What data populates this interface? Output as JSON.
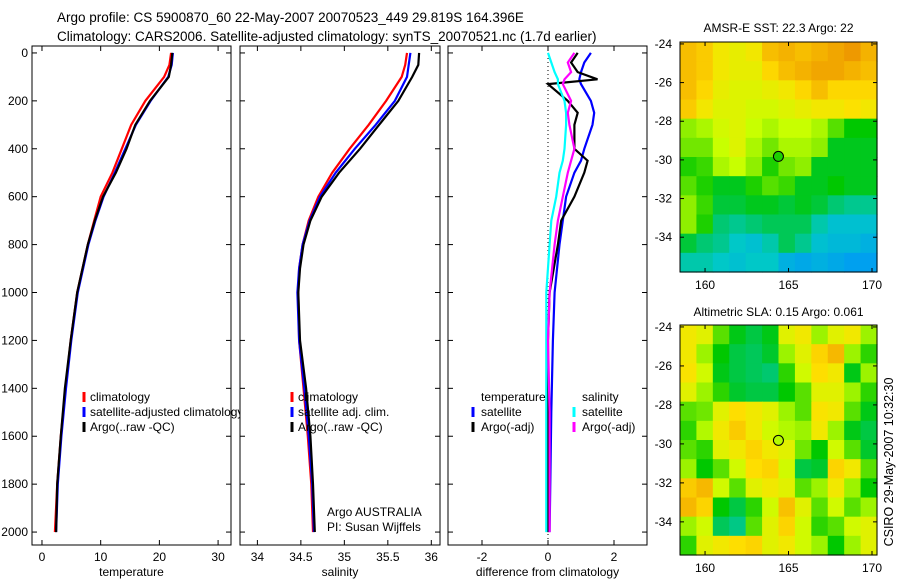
{
  "title": {
    "line1": "Argo profile: CS 5900870_60 22-May-2007 20070523_449 29.819S 164.396E",
    "line2": "Climatology: CARS2006. Satellite-adjusted climatology: synTS_20070521.nc (1.7d earlier)"
  },
  "footer_stamp": "CSIRO 29-May-2007 10:32:30",
  "colors": {
    "climatology": "#ff0000",
    "satellite": "#0000ff",
    "argo": "#000000",
    "sal_satellite": "#00ffff",
    "sal_argo": "#ff00ff"
  },
  "chart_data": [
    {
      "type": "line",
      "name": "temperature-profile",
      "xlabel": "temperature",
      "ylabel": "",
      "xlim": [
        -1.7,
        32.2
      ],
      "ylim": [
        2054,
        -29
      ],
      "xticks": [
        0,
        10,
        20,
        30
      ],
      "yticks": [
        0,
        200,
        400,
        600,
        800,
        1000,
        1200,
        1400,
        1600,
        1800,
        2000
      ],
      "depth": [
        0,
        50,
        100,
        200,
        300,
        400,
        500,
        600,
        700,
        800,
        1000,
        1200,
        1400,
        1600,
        1800,
        2000
      ],
      "series": [
        {
          "name": "climatology",
          "color": "#ff0000",
          "values": [
            22.0,
            21.7,
            20.8,
            17.6,
            15.2,
            13.6,
            12.0,
            10.0,
            8.9,
            7.8,
            6.0,
            4.9,
            4.0,
            3.2,
            2.6,
            2.2
          ]
        },
        {
          "name": "satellite-adjusted climatology",
          "color": "#0000ff",
          "values": [
            22.3,
            22.1,
            21.5,
            18.5,
            16.0,
            14.2,
            12.4,
            10.5,
            9.1,
            7.9,
            6.1,
            5.0,
            4.1,
            3.3,
            2.7,
            2.4
          ]
        },
        {
          "name": "Argo(..raw -QC)",
          "color": "#000000",
          "values": [
            22.2,
            22.0,
            21.6,
            18.4,
            15.9,
            14.4,
            12.6,
            10.4,
            9.0,
            7.8,
            6.0,
            4.9,
            3.9,
            3.2,
            2.6,
            2.4
          ]
        }
      ],
      "legend": [
        "climatology",
        "satellite-adjusted climatology",
        "Argo(..raw -QC)"
      ]
    },
    {
      "type": "line",
      "name": "salinity-profile",
      "xlabel": "salinity",
      "xlim": [
        33.8,
        36.1
      ],
      "ylim": [
        2054,
        -29
      ],
      "xticks": [
        34,
        34.5,
        35,
        35.5,
        36
      ],
      "depth": [
        0,
        50,
        100,
        200,
        300,
        400,
        500,
        600,
        700,
        800,
        900,
        1000,
        1200,
        1400,
        1600,
        1800,
        2000
      ],
      "series": [
        {
          "name": "climatology",
          "color": "#ff0000",
          "values": [
            35.72,
            35.7,
            35.66,
            35.48,
            35.28,
            35.06,
            34.86,
            34.7,
            34.59,
            34.52,
            34.48,
            34.47,
            34.48,
            34.53,
            34.58,
            34.62,
            34.64
          ]
        },
        {
          "name": "satellite adj. clim.",
          "color": "#0000ff",
          "values": [
            35.76,
            35.74,
            35.72,
            35.58,
            35.36,
            35.12,
            34.9,
            34.72,
            34.6,
            34.52,
            34.48,
            34.46,
            34.48,
            34.54,
            34.59,
            34.63,
            34.65
          ]
        },
        {
          "name": "Argo(..raw -QC)",
          "color": "#000000",
          "values": [
            35.86,
            35.85,
            35.78,
            35.62,
            35.4,
            35.18,
            34.94,
            34.74,
            34.61,
            34.53,
            34.49,
            34.47,
            34.49,
            34.56,
            34.61,
            34.64,
            34.66
          ]
        }
      ],
      "legend": [
        "climatology",
        "satellite adj. clim.",
        "Argo(..raw -QC)"
      ],
      "annotation": [
        "Argo AUSTRALIA",
        "PI: Susan Wijffels"
      ]
    },
    {
      "type": "line",
      "name": "difference-profile",
      "xlabel": "difference from climatology",
      "xlim": [
        -3.03,
        3.0
      ],
      "ylim": [
        2054,
        -29
      ],
      "xticks": [
        -2,
        0,
        2
      ],
      "zero_line": "dotted",
      "depth": [
        0,
        40,
        80,
        110,
        130,
        200,
        250,
        300,
        400,
        450,
        500,
        600,
        700,
        800,
        1000,
        1200,
        1500,
        2000
      ],
      "series": [
        {
          "name": "temperature satellite",
          "color": "#0000ff",
          "values": [
            1.3,
            1.1,
            1.0,
            0.95,
            1.0,
            1.3,
            1.4,
            1.35,
            1.1,
            1.0,
            0.8,
            0.55,
            0.45,
            0.35,
            0.2,
            0.15,
            0.1,
            0.05
          ]
        },
        {
          "name": "temperature Argo(-adj)",
          "color": "#000000",
          "values": [
            0.9,
            0.7,
            0.9,
            1.5,
            0.0,
            0.6,
            0.9,
            0.8,
            0.8,
            1.2,
            1.1,
            0.8,
            0.4,
            0.3,
            0.05,
            0.0,
            0.0,
            0.0
          ]
        },
        {
          "name": "salinity satellite",
          "color": "#00ffff",
          "values": [
            0.0,
            0.1,
            0.2,
            0.3,
            0.3,
            0.5,
            0.55,
            0.55,
            0.5,
            0.45,
            0.35,
            0.25,
            0.1,
            0.05,
            -0.05,
            -0.05,
            -0.05,
            -0.05
          ]
        },
        {
          "name": "salinity Argo(-adj)",
          "color": "#ff00ff",
          "values": [
            0.8,
            0.6,
            0.7,
            0.5,
            0.45,
            0.7,
            0.6,
            0.65,
            0.8,
            0.7,
            0.6,
            0.45,
            0.3,
            0.2,
            0.05,
            0.0,
            0.05,
            0.05
          ]
        }
      ],
      "legend": {
        "temperature": {
          "heading": "temperature",
          "items": [
            "satellite",
            "Argo(-adj)"
          ]
        },
        "salinity": {
          "heading": "salinity",
          "items": [
            "satellite",
            "Argo(-adj)"
          ]
        }
      }
    },
    {
      "type": "heatmap",
      "name": "sst-map",
      "title": "AMSR-E SST: 22.3 Argo: 22",
      "xlim": [
        158.5,
        170.3
      ],
      "ylim": [
        -35.8,
        -23.9
      ],
      "xticks": [
        160,
        165,
        170
      ],
      "yticks": [
        -24,
        -26,
        -28,
        -30,
        -32,
        -34
      ],
      "color_range": [
        20.5,
        24.0
      ],
      "point": {
        "lon": 164.396,
        "lat": -29.819,
        "value": 22
      },
      "values": [
        [
          23.4,
          23.3,
          23.0,
          22.9,
          23.0,
          23.4,
          23.5,
          23.4,
          23.5,
          23.6,
          23.7,
          23.5
        ],
        [
          23.4,
          23.3,
          23.0,
          22.9,
          22.9,
          23.2,
          23.4,
          23.5,
          23.6,
          23.6,
          23.5,
          23.4
        ],
        [
          23.4,
          23.2,
          22.9,
          22.8,
          22.8,
          22.9,
          23.0,
          23.2,
          23.4,
          23.2,
          23.2,
          23.2
        ],
        [
          23.3,
          23.0,
          22.8,
          22.8,
          22.7,
          22.7,
          22.8,
          22.9,
          23.0,
          23.0,
          23.1,
          23.0
        ],
        [
          22.4,
          22.5,
          22.7,
          22.8,
          22.6,
          22.5,
          22.6,
          22.6,
          22.5,
          22.2,
          21.9,
          21.9
        ],
        [
          22.3,
          22.3,
          22.6,
          22.8,
          22.5,
          22.3,
          22.5,
          22.5,
          22.4,
          21.8,
          21.8,
          21.8
        ],
        [
          22.0,
          22.1,
          22.5,
          22.6,
          22.4,
          22.0,
          22.3,
          22.4,
          21.8,
          21.8,
          21.8,
          21.8
        ],
        [
          22.2,
          22.0,
          21.8,
          21.8,
          22.0,
          22.2,
          22.1,
          21.8,
          21.8,
          21.9,
          21.8,
          21.8
        ],
        [
          22.4,
          22.1,
          21.7,
          21.7,
          21.8,
          21.8,
          21.7,
          21.8,
          21.7,
          21.5,
          21.4,
          21.4
        ],
        [
          22.4,
          22.0,
          21.5,
          21.4,
          21.5,
          21.6,
          21.6,
          21.6,
          21.3,
          21.1,
          21.1,
          21.1
        ],
        [
          21.7,
          21.5,
          21.4,
          21.2,
          21.1,
          21.3,
          21.6,
          21.4,
          21.1,
          21.0,
          21.0,
          20.9
        ],
        [
          21.3,
          21.3,
          21.2,
          21.1,
          21.2,
          21.2,
          20.9,
          20.8,
          20.9,
          20.8,
          20.7,
          20.7
        ]
      ]
    },
    {
      "type": "heatmap",
      "name": "sla-map",
      "title": "Altimetric SLA: 0.15 Argo: 0.061",
      "xlim": [
        158.5,
        170.3
      ],
      "ylim": [
        -35.7,
        -23.9
      ],
      "xticks": [
        160,
        165,
        170
      ],
      "yticks": [
        -24,
        -26,
        -28,
        -30,
        -32,
        -34
      ],
      "color_range": [
        -0.2,
        0.25
      ],
      "point": {
        "lon": 164.396,
        "lat": -29.819,
        "value": 0.061
      },
      "values": [
        [
          0.12,
          0.1,
          0.02,
          -0.03,
          -0.05,
          -0.03,
          0.1,
          0.12,
          0.05,
          0.1,
          0.12,
          0.05
        ],
        [
          0.12,
          0.05,
          -0.02,
          -0.05,
          -0.06,
          -0.04,
          0.05,
          0.1,
          0.15,
          0.18,
          0.05,
          0.0
        ],
        [
          0.13,
          0.08,
          -0.03,
          -0.05,
          -0.06,
          -0.07,
          0.0,
          0.08,
          0.14,
          0.12,
          -0.03,
          0.05
        ],
        [
          0.1,
          0.05,
          0.0,
          -0.04,
          -0.05,
          -0.05,
          -0.02,
          0.02,
          0.1,
          0.1,
          0.05,
          0.0
        ],
        [
          0.02,
          0.03,
          0.1,
          0.14,
          0.12,
          0.1,
          0.05,
          0.02,
          0.13,
          0.12,
          0.02,
          -0.03
        ],
        [
          0.0,
          0.06,
          0.12,
          0.16,
          0.12,
          0.08,
          0.06,
          0.05,
          0.12,
          0.05,
          -0.03,
          -0.05
        ],
        [
          0.02,
          0.0,
          0.1,
          0.12,
          0.15,
          0.12,
          0.1,
          0.03,
          -0.02,
          0.08,
          0.02,
          -0.04
        ],
        [
          0.05,
          -0.02,
          0.02,
          0.08,
          0.14,
          0.15,
          0.08,
          -0.05,
          -0.04,
          0.15,
          0.12,
          0.02
        ],
        [
          0.16,
          0.18,
          0.08,
          0.02,
          0.1,
          0.12,
          0.1,
          0.02,
          0.05,
          0.12,
          0.05,
          -0.02
        ],
        [
          0.18,
          0.15,
          -0.02,
          -0.05,
          0.0,
          0.08,
          0.17,
          0.1,
          0.02,
          0.08,
          0.02,
          0.05
        ],
        [
          0.05,
          0.08,
          -0.06,
          -0.08,
          0.02,
          0.1,
          0.15,
          0.08,
          0.0,
          0.02,
          0.08,
          0.1
        ],
        [
          0.0,
          0.1,
          0.12,
          0.14,
          0.15,
          0.1,
          0.12,
          0.08,
          0.05,
          -0.02,
          0.05,
          0.1
        ]
      ]
    }
  ]
}
